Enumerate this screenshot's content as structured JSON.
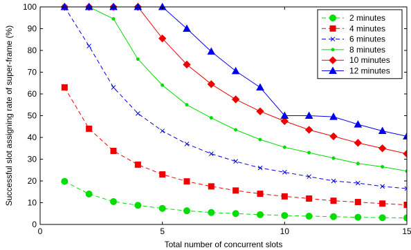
{
  "chart_data": {
    "type": "line",
    "title": "",
    "xlabel": "Total number of concurrent slots",
    "ylabel": "Successful slot assigning rate of super-frame (%)",
    "xlim": [
      0,
      15
    ],
    "ylim": [
      0,
      100
    ],
    "xticks": [
      "0",
      "5",
      "10",
      "15"
    ],
    "yticks": [
      "0",
      "10",
      "20",
      "30",
      "40",
      "50",
      "60",
      "70",
      "80",
      "90",
      "100"
    ],
    "x": [
      1,
      2,
      3,
      4,
      5,
      6,
      7,
      8,
      9,
      10,
      11,
      12,
      13,
      14,
      15
    ],
    "grid": false,
    "legend_position": "top-right",
    "series": [
      {
        "name": "2 minutes",
        "color": "#00dd00",
        "line_style": "dashed",
        "marker": "circle",
        "values": [
          19.8,
          14,
          10.5,
          8.8,
          7.4,
          6.3,
          5.5,
          5,
          4.5,
          4.1,
          3.8,
          3.6,
          3.3,
          3.1,
          3
        ]
      },
      {
        "name": "4 minutes",
        "color": "#ee0000",
        "line_style": "dashed",
        "marker": "square",
        "values": [
          63,
          44,
          33.8,
          27.5,
          23,
          19.8,
          17.5,
          15.6,
          14.1,
          12.9,
          11.9,
          10.9,
          10.3,
          9.6,
          9
        ]
      },
      {
        "name": "6 minutes",
        "color": "#0000dd",
        "line_style": "dashed",
        "marker": "x",
        "values": [
          100,
          82,
          63,
          51,
          43,
          37,
          32.5,
          29,
          26,
          24,
          22,
          20,
          19,
          17.5,
          16.5
        ]
      },
      {
        "name": "8 minutes",
        "color": "#00dd00",
        "line_style": "solid",
        "marker": "dot",
        "values": [
          100,
          100,
          94.5,
          76,
          64,
          55,
          49,
          43.5,
          39,
          35.5,
          33,
          30.5,
          28,
          26.5,
          24.5
        ]
      },
      {
        "name": "10 minutes",
        "color": "#ee0000",
        "line_style": "solid",
        "marker": "diamond",
        "values": [
          100,
          100,
          100,
          100,
          85.5,
          73.5,
          64.5,
          57.5,
          52,
          47.5,
          43.5,
          40.5,
          37.5,
          35,
          32.5
        ]
      },
      {
        "name": "12 minutes",
        "color": "#0000ee",
        "line_style": "solid",
        "marker": "triangle",
        "values": [
          100,
          100,
          100,
          100,
          100,
          90,
          79.5,
          70.5,
          63,
          50,
          50,
          49.5,
          46,
          43,
          40.5
        ]
      }
    ]
  }
}
